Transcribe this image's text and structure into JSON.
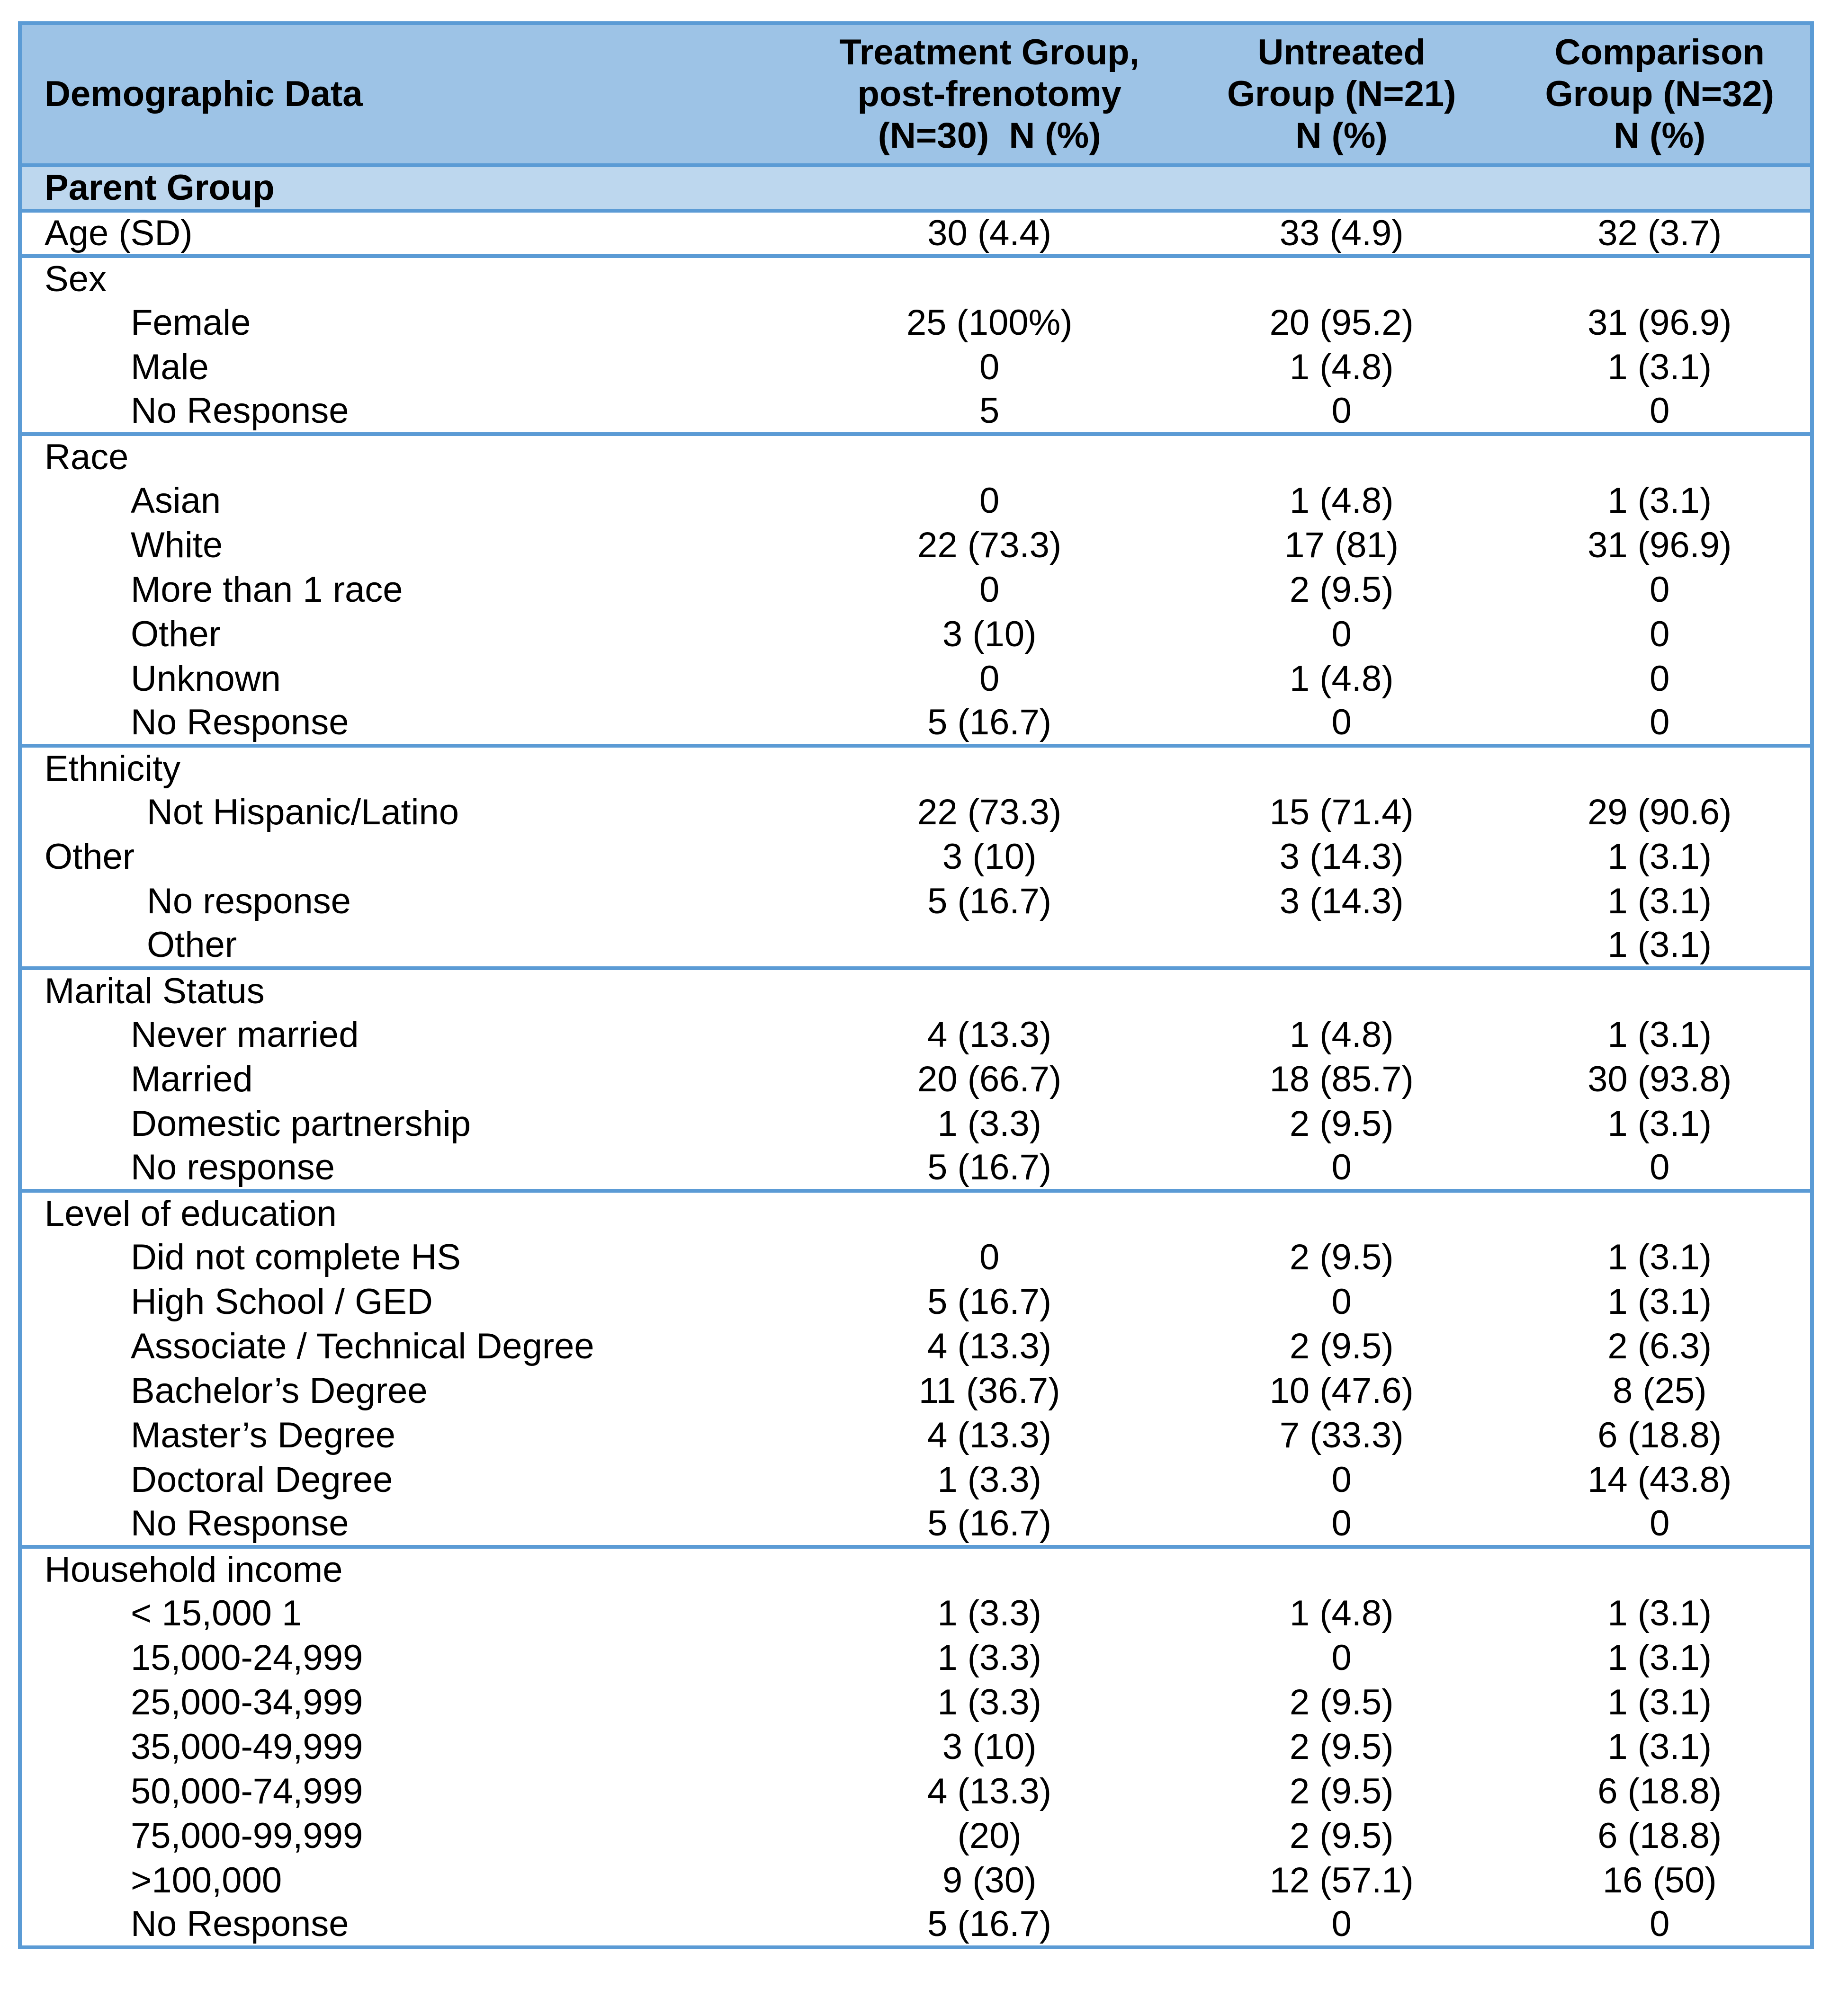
{
  "colors": {
    "border": "#5B9BD5",
    "header_bg": "#9DC3E6",
    "group_bg": "#BDD7EE",
    "text": "#000000",
    "page_bg": "#FFFFFF"
  },
  "table": {
    "header": {
      "demographic": "Demographic Data",
      "treatment": "Treatment Group,\npost-frenotomy\n(N=30)  N (%)",
      "untreated": "Untreated\nGroup (N=21)\nN (%)",
      "comparison": "Comparison\nGroup (N=32)\nN (%)"
    },
    "group_header": "Parent Group",
    "sections": [
      {
        "name": "age",
        "rows": [
          {
            "label": "Age (SD)",
            "indent": 0,
            "values": [
              "30 (4.4)",
              "33 (4.9)",
              "32 (3.7)"
            ]
          }
        ]
      },
      {
        "name": "sex",
        "rows": [
          {
            "label": "Sex",
            "indent": 0,
            "values": [
              "",
              "",
              ""
            ]
          },
          {
            "label": "Female",
            "indent": 1,
            "values": [
              "25 (100%)",
              "20 (95.2)",
              "31 (96.9)"
            ]
          },
          {
            "label": "Male",
            "indent": 1,
            "values": [
              "0",
              "1 (4.8)",
              "1 (3.1)"
            ]
          },
          {
            "label": "No Response",
            "indent": 1,
            "values": [
              "5",
              "0",
              "0"
            ]
          }
        ]
      },
      {
        "name": "race",
        "rows": [
          {
            "label": "Race",
            "indent": 0,
            "values": [
              "",
              "",
              ""
            ]
          },
          {
            "label": "Asian",
            "indent": 1,
            "values": [
              "0",
              "1 (4.8)",
              "1 (3.1)"
            ]
          },
          {
            "label": "White",
            "indent": 1,
            "values": [
              "22 (73.3)",
              "17 (81)",
              "31 (96.9)"
            ]
          },
          {
            "label": "More than 1 race",
            "indent": 1,
            "values": [
              "0",
              "2 (9.5)",
              "0"
            ]
          },
          {
            "label": "Other",
            "indent": 1,
            "values": [
              "3 (10)",
              "0",
              "0"
            ]
          },
          {
            "label": "Unknown",
            "indent": 1,
            "values": [
              "0",
              "1 (4.8)",
              "0"
            ]
          },
          {
            "label": "No Response",
            "indent": 1,
            "values": [
              "5 (16.7)",
              "0",
              "0"
            ]
          }
        ]
      },
      {
        "name": "ethnicity",
        "rows": [
          {
            "label": "Ethnicity",
            "indent": 0,
            "values": [
              "",
              "",
              ""
            ]
          },
          {
            "label": "Not Hispanic/Latino",
            "indent": 2,
            "values": [
              "22 (73.3)",
              "15 (71.4)",
              "29 (90.6)"
            ]
          },
          {
            "label": "Other",
            "indent": 0,
            "values": [
              "3 (10)",
              "3 (14.3)",
              "1 (3.1)"
            ]
          },
          {
            "label": "No response",
            "indent": 2,
            "values": [
              "5 (16.7)",
              "3 (14.3)",
              "1 (3.1)"
            ]
          },
          {
            "label": "Other",
            "indent": 2,
            "values": [
              "",
              "",
              "1 (3.1)"
            ]
          }
        ]
      },
      {
        "name": "marital-status",
        "rows": [
          {
            "label": "Marital Status",
            "indent": 0,
            "values": [
              "",
              "",
              ""
            ]
          },
          {
            "label": "Never married",
            "indent": 1,
            "values": [
              "4 (13.3)",
              "1 (4.8)",
              "1 (3.1)"
            ]
          },
          {
            "label": "Married",
            "indent": 1,
            "values": [
              "20 (66.7)",
              "18 (85.7)",
              "30 (93.8)"
            ]
          },
          {
            "label": "Domestic partnership",
            "indent": 1,
            "values": [
              "1 (3.3)",
              "2 (9.5)",
              "1 (3.1)"
            ]
          },
          {
            "label": "No response",
            "indent": 1,
            "values": [
              "5 (16.7)",
              "0",
              "0"
            ]
          }
        ]
      },
      {
        "name": "education",
        "rows": [
          {
            "label": "Level of education",
            "indent": 0,
            "values": [
              "",
              "",
              ""
            ]
          },
          {
            "label": "Did not complete HS",
            "indent": 1,
            "values": [
              "0",
              "2 (9.5)",
              "1 (3.1)"
            ]
          },
          {
            "label": "High School / GED",
            "indent": 1,
            "values": [
              "5 (16.7)",
              "0",
              "1 (3.1)"
            ]
          },
          {
            "label": "Associate / Technical Degree",
            "indent": 1,
            "values": [
              "4 (13.3)",
              "2 (9.5)",
              "2 (6.3)"
            ]
          },
          {
            "label": "Bachelor’s Degree",
            "indent": 1,
            "values": [
              "11 (36.7)",
              "10 (47.6)",
              "8 (25)"
            ]
          },
          {
            "label": "Master’s Degree",
            "indent": 1,
            "values": [
              "4 (13.3)",
              "7 (33.3)",
              "6 (18.8)"
            ]
          },
          {
            "label": "Doctoral Degree",
            "indent": 1,
            "values": [
              "1 (3.3)",
              "0",
              "14 (43.8)"
            ]
          },
          {
            "label": "No Response",
            "indent": 1,
            "values": [
              "5 (16.7)",
              "0",
              "0"
            ]
          }
        ]
      },
      {
        "name": "household-income",
        "rows": [
          {
            "label": "Household income",
            "indent": 0,
            "values": [
              "",
              "",
              ""
            ]
          },
          {
            "label": "< 15,000 1",
            "indent": 1,
            "values": [
              "1 (3.3)",
              "1 (4.8)",
              "1 (3.1)"
            ]
          },
          {
            "label": "15,000-24,999",
            "indent": 1,
            "values": [
              "1 (3.3)",
              "0",
              "1 (3.1)"
            ]
          },
          {
            "label": "25,000-34,999",
            "indent": 1,
            "values": [
              "1 (3.3)",
              "2 (9.5)",
              "1 (3.1)"
            ]
          },
          {
            "label": "35,000-49,999",
            "indent": 1,
            "values": [
              "3 (10)",
              "2 (9.5)",
              "1 (3.1)"
            ]
          },
          {
            "label": "50,000-74,999",
            "indent": 1,
            "values": [
              "4 (13.3)",
              "2 (9.5)",
              "6 (18.8)"
            ]
          },
          {
            "label": "75,000-99,999",
            "indent": 1,
            "values": [
              "(20)",
              "2 (9.5)",
              "6 (18.8)"
            ]
          },
          {
            "label": ">100,000",
            "indent": 1,
            "values": [
              "9 (30)",
              "12 (57.1)",
              "16 (50)"
            ]
          },
          {
            "label": "No Response",
            "indent": 1,
            "values": [
              "5 (16.7)",
              "0",
              "0"
            ]
          }
        ]
      }
    ]
  }
}
